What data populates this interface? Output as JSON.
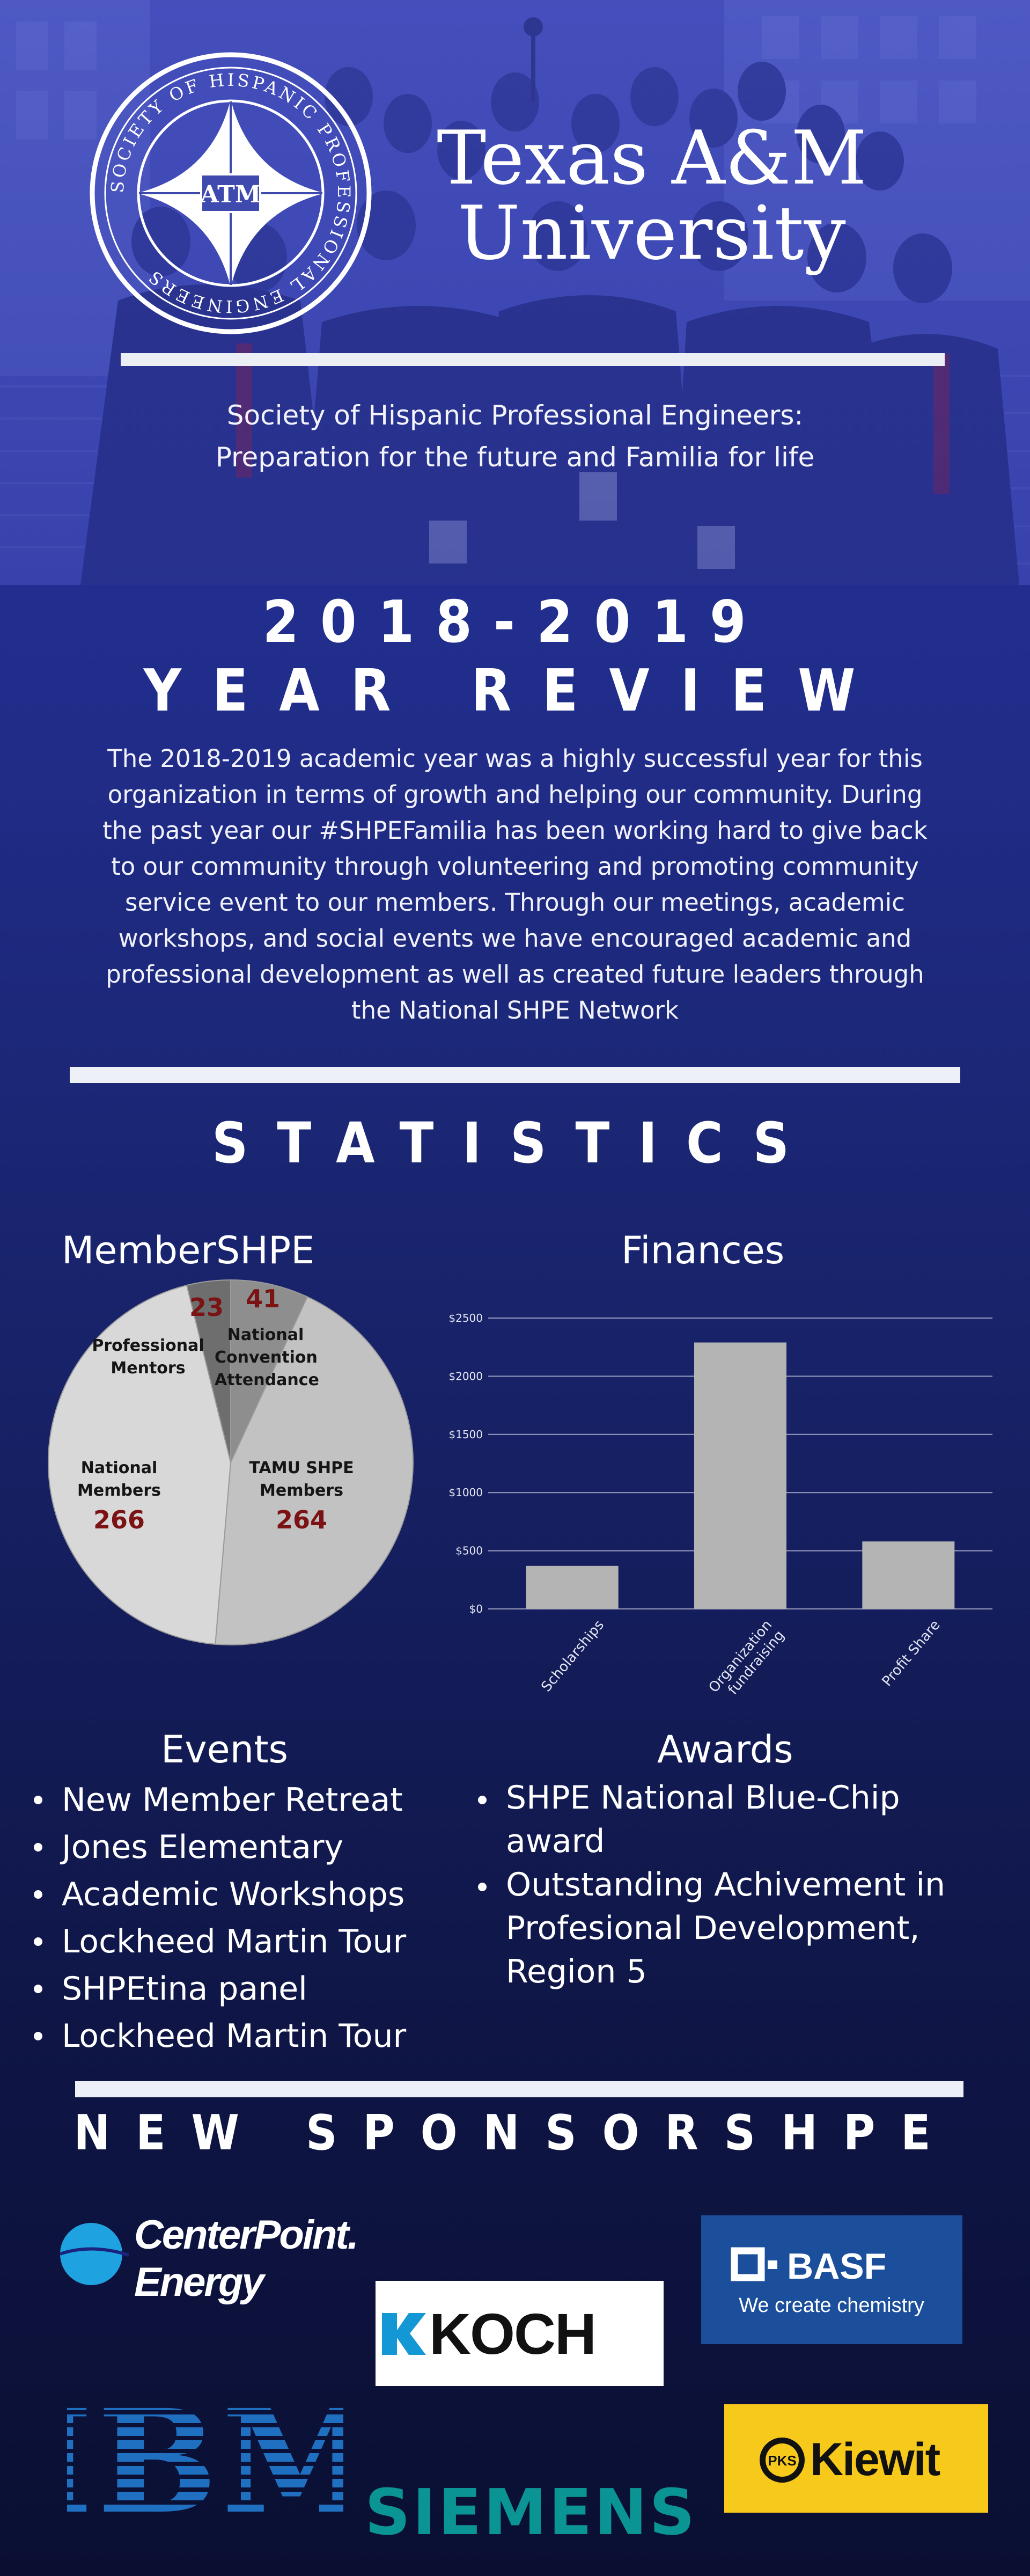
{
  "hero": {
    "seal_outer_text": "SOCIETY OF HISPANIC PROFESSIONAL ENGINEERS",
    "seal_center_text": "ATM",
    "title_line1": "Texas A&M",
    "title_line2": "University",
    "tagline_line1": "Society of  Hispanic Professional Engineers:",
    "tagline_line2": "Preparation for the future and Familia for life"
  },
  "review": {
    "year": "2018-2019",
    "heading": "YEAR REVIEW",
    "paragraph_lines": [
      "The 2018-2019 academic year was a highly successful year for this",
      "organization in terms of growth and helping our community. During",
      "the past year our #SHPEFamilia has been working hard to give back",
      "to our community through volunteering and promoting community",
      "service event to our members. Through our meetings, academic",
      "workshops, and social events we have encouraged academic and",
      "professional development as well as created future leaders through",
      "the National SHPE Network"
    ]
  },
  "statistics": {
    "heading": "STATISTICS",
    "member_title": "MemberSHPE",
    "finances_title": "Finances"
  },
  "chart_data": [
    {
      "type": "pie",
      "title": "MemberSHPE",
      "slices": [
        {
          "label_lines": [
            "National",
            "Convention",
            "Attendance"
          ],
          "value": 41,
          "color": "#8e8e8e"
        },
        {
          "label_lines": [
            "TAMU SHPE",
            "Members"
          ],
          "value": 264,
          "color": "#c2c2c2"
        },
        {
          "label_lines": [
            "National",
            "Members"
          ],
          "value": 266,
          "color": "#d8d8d8"
        },
        {
          "label_lines": [
            "Professional",
            "Mentors"
          ],
          "value": 23,
          "color": "#6e6e6e"
        }
      ]
    },
    {
      "type": "bar",
      "title": "Finances",
      "categories": [
        "Scholarships",
        "Organization fundraising",
        "Profit Share"
      ],
      "category_label_lines": [
        [
          "Scholarships"
        ],
        [
          "Organization",
          "fundraising"
        ],
        [
          "Profit Share"
        ]
      ],
      "values": [
        370,
        2290,
        580
      ],
      "ylim": [
        0,
        2500
      ],
      "yticks": [
        "$0",
        "$500",
        "$1000",
        "$1500",
        "$2000",
        "$2500"
      ],
      "bar_color": "#b4b4b4",
      "grid": true
    }
  ],
  "events": {
    "title": "Events",
    "items": [
      "New Member Retreat",
      "Jones Elementary",
      "Academic Workshops",
      "Lockheed Martin Tour",
      "SHPEtina panel",
      "Lockheed Martin Tour"
    ]
  },
  "awards": {
    "title": "Awards",
    "item1_lines": [
      "SHPE National Blue-Chip",
      "award"
    ],
    "item2_lines": [
      "Outstanding Achivement in",
      "Profesional Development,",
      "Region 5"
    ]
  },
  "sponsors": {
    "heading": "NEW SPONSORSHPE",
    "centerpoint_line1": "CenterPoint.",
    "centerpoint_line2": "Energy",
    "basf_name": "BASF",
    "basf_tagline": "We create chemistry",
    "koch": "KOCH",
    "ibm": "IBM",
    "siemens": "SIEMENS",
    "kiewit": "Kiewit",
    "kiewit_badge": "PKS"
  },
  "colors": {
    "page_top": "#2a34a8",
    "page_bottom": "#0a0f32",
    "pie_number": "#7b1214",
    "basf_blue": "#1b4f9c",
    "kiewit_yellow": "#f7c91b",
    "siemens_teal": "#0a9494",
    "ibm_blue": "#1f70c1",
    "centerpoint_blue": "#1fa3e0"
  }
}
